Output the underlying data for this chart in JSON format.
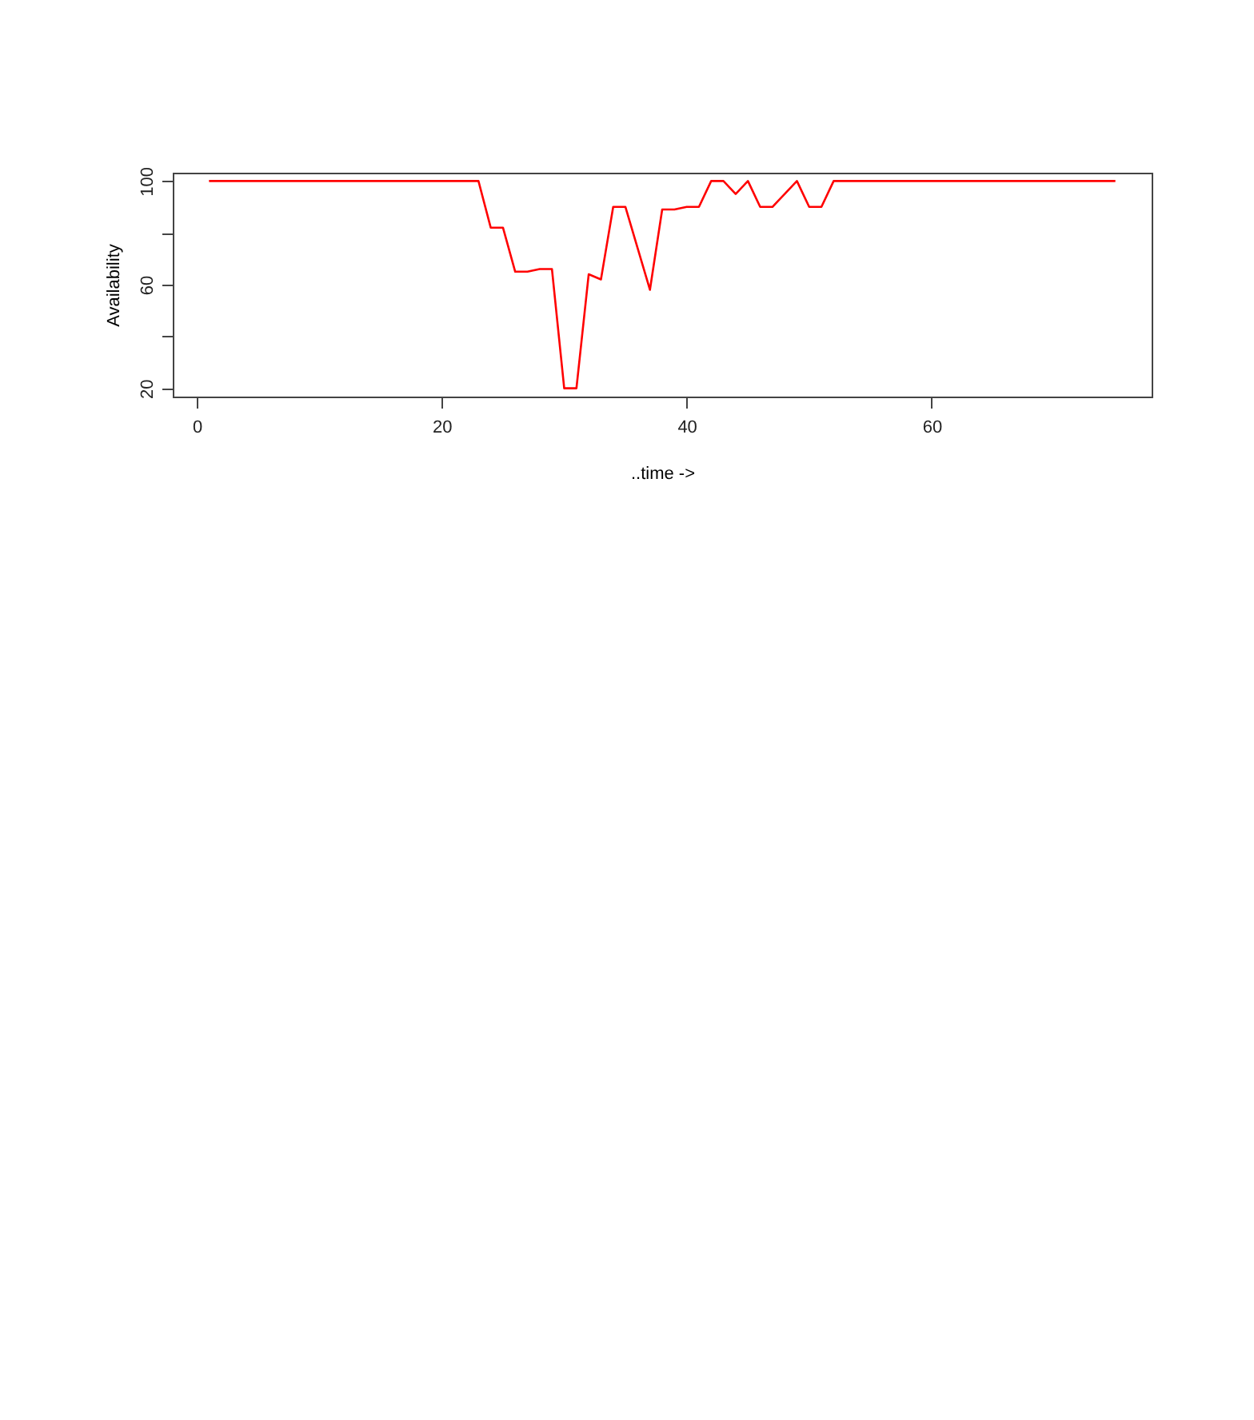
{
  "chart_data": {
    "type": "line",
    "xlabel": "..time ->",
    "ylabel": "Availability",
    "x": [
      1,
      2,
      3,
      4,
      5,
      6,
      7,
      8,
      9,
      10,
      11,
      12,
      13,
      14,
      15,
      16,
      17,
      18,
      19,
      20,
      21,
      22,
      23,
      24,
      25,
      26,
      27,
      28,
      29,
      30,
      31,
      32,
      33,
      34,
      35,
      36,
      37,
      38,
      39,
      40,
      41,
      42,
      43,
      44,
      45,
      46,
      47,
      48,
      49,
      50,
      51,
      52,
      53,
      54,
      55,
      56,
      57,
      58,
      59,
      60,
      61,
      62,
      63,
      64,
      65,
      66,
      67,
      68,
      69,
      70,
      71,
      72,
      73,
      74,
      75
    ],
    "series": [
      {
        "color": "#ff0000",
        "values": [
          100,
          100,
          100,
          100,
          100,
          100,
          100,
          100,
          100,
          100,
          100,
          100,
          100,
          100,
          100,
          100,
          100,
          100,
          100,
          100,
          100,
          100,
          100,
          82,
          82,
          65,
          65,
          66,
          66,
          20,
          20,
          64,
          62,
          90,
          90,
          74,
          58,
          89,
          89,
          90,
          90,
          100,
          100,
          95,
          100,
          90,
          90,
          95,
          100,
          90,
          90,
          100,
          100,
          100,
          100,
          100,
          100,
          100,
          100,
          100,
          100,
          100,
          100,
          100,
          100,
          100,
          100,
          100,
          100,
          100,
          100,
          100,
          100,
          100,
          100
        ]
      }
    ],
    "xlim": [
      -1.96,
      77.96
    ],
    "xticks": [
      0,
      20,
      40,
      60
    ],
    "ylim": [
      16.8,
      103.2
    ],
    "yticks": [
      20,
      {
        "value": 40,
        "label": null
      },
      60,
      {
        "value": 80,
        "label": null
      },
      100
    ],
    "grid": false,
    "marker": "none",
    "line_style": "solid"
  }
}
